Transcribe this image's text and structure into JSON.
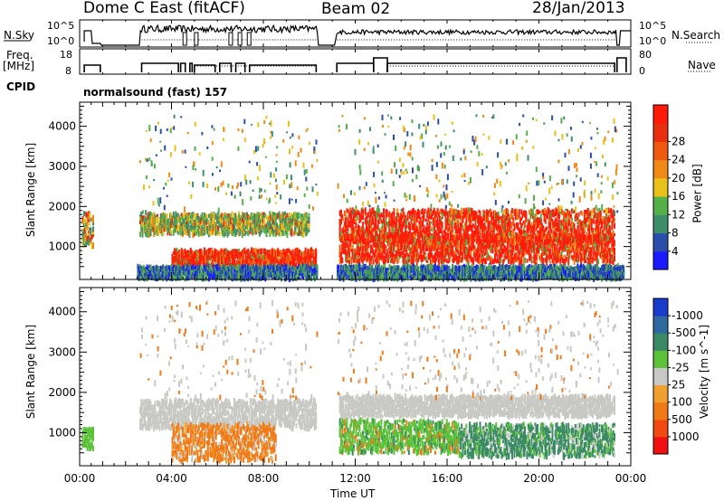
{
  "header": {
    "station": "Dome C East (fitACF)",
    "beam": "Beam 02",
    "date": "28/Jan/2013"
  },
  "panels": {
    "nsky_label": "N.Sky",
    "nsky_ticks": [
      "10^5",
      "10^0"
    ],
    "nsearch_label": "N.Search",
    "nsearch_ticks": [
      "10^5",
      "10^0"
    ],
    "freq_label_1": "Freq.",
    "freq_label_2": "[MHz]",
    "freq_ticks": [
      "18",
      "8"
    ],
    "nave_label": "Nave",
    "nave_ticks": [
      "80",
      "0"
    ],
    "cpid_label": "CPID",
    "cpid_value": "normalsound (fast) 157"
  },
  "x_axis": {
    "label": "Time UT",
    "ticks": [
      "00:00",
      "04:00",
      "08:00",
      "12:00",
      "16:00",
      "20:00",
      "00:00"
    ],
    "range_hours": [
      0,
      24
    ]
  },
  "chart_data": [
    {
      "type": "heatmap",
      "quantity": "Power",
      "ylabel": "Slant Range [km]",
      "y_ticks": [
        1000,
        2000,
        3000,
        4000
      ],
      "ylim": [
        180,
        4600
      ],
      "colorbar_label": "Power [dB]",
      "colorbar_ticks": [
        "4",
        "8",
        "12",
        "16",
        "20",
        "24",
        "28"
      ],
      "colorbar_colors": [
        "#1a1aff",
        "#2b4fa8",
        "#3c8f6a",
        "#55b04a",
        "#e8c21a",
        "#f08a17",
        "#f05a10",
        "#e83010",
        "#ff1a0a"
      ],
      "bands": [
        {
          "t": [
            0.1,
            0.6
          ],
          "r": [
            1000,
            1850
          ],
          "level": "mixed"
        },
        {
          "t": [
            2.6,
            10.0
          ],
          "r": [
            1300,
            1800
          ],
          "level": "medium"
        },
        {
          "t": [
            4.0,
            10.3
          ],
          "r": [
            500,
            900
          ],
          "level": "high"
        },
        {
          "t": [
            11.3,
            23.3
          ],
          "r": [
            1100,
            1900
          ],
          "level": "high"
        },
        {
          "t": [
            11.3,
            23.3
          ],
          "r": [
            600,
            1300
          ],
          "level": "high"
        },
        {
          "t": [
            2.5,
            23.7
          ],
          "r": [
            200,
            500
          ],
          "level": "low"
        }
      ]
    },
    {
      "type": "heatmap",
      "quantity": "Velocity",
      "ylabel": "Slant Range [km]",
      "y_ticks": [
        1000,
        2000,
        3000,
        4000
      ],
      "ylim": [
        180,
        4600
      ],
      "colorbar_label": "Velocity [m s^-1]",
      "colorbar_ticks": [
        "1000",
        "500",
        "100",
        "25",
        "-25",
        "-100",
        "-500",
        "-1000"
      ],
      "colorbar_colors": [
        "#1a3ccc",
        "#2e6aa0",
        "#3a8a66",
        "#5cc23a",
        "#c8c8c4",
        "#f0a030",
        "#f07a18",
        "#f04a12",
        "#f01010"
      ],
      "bands": [
        {
          "t": [
            0.1,
            0.6
          ],
          "r": [
            600,
            1100
          ],
          "level": "green"
        },
        {
          "t": [
            2.6,
            10.3
          ],
          "r": [
            1100,
            1800
          ],
          "level": "grey"
        },
        {
          "t": [
            4.0,
            8.5
          ],
          "r": [
            300,
            1200
          ],
          "level": "orange"
        },
        {
          "t": [
            11.3,
            23.3
          ],
          "r": [
            1400,
            1900
          ],
          "level": "grey"
        },
        {
          "t": [
            11.3,
            16.5
          ],
          "r": [
            500,
            1300
          ],
          "level": "lightgreen"
        },
        {
          "t": [
            16.5,
            23.3
          ],
          "r": [
            400,
            1200
          ],
          "level": "darkgreen"
        }
      ]
    }
  ]
}
